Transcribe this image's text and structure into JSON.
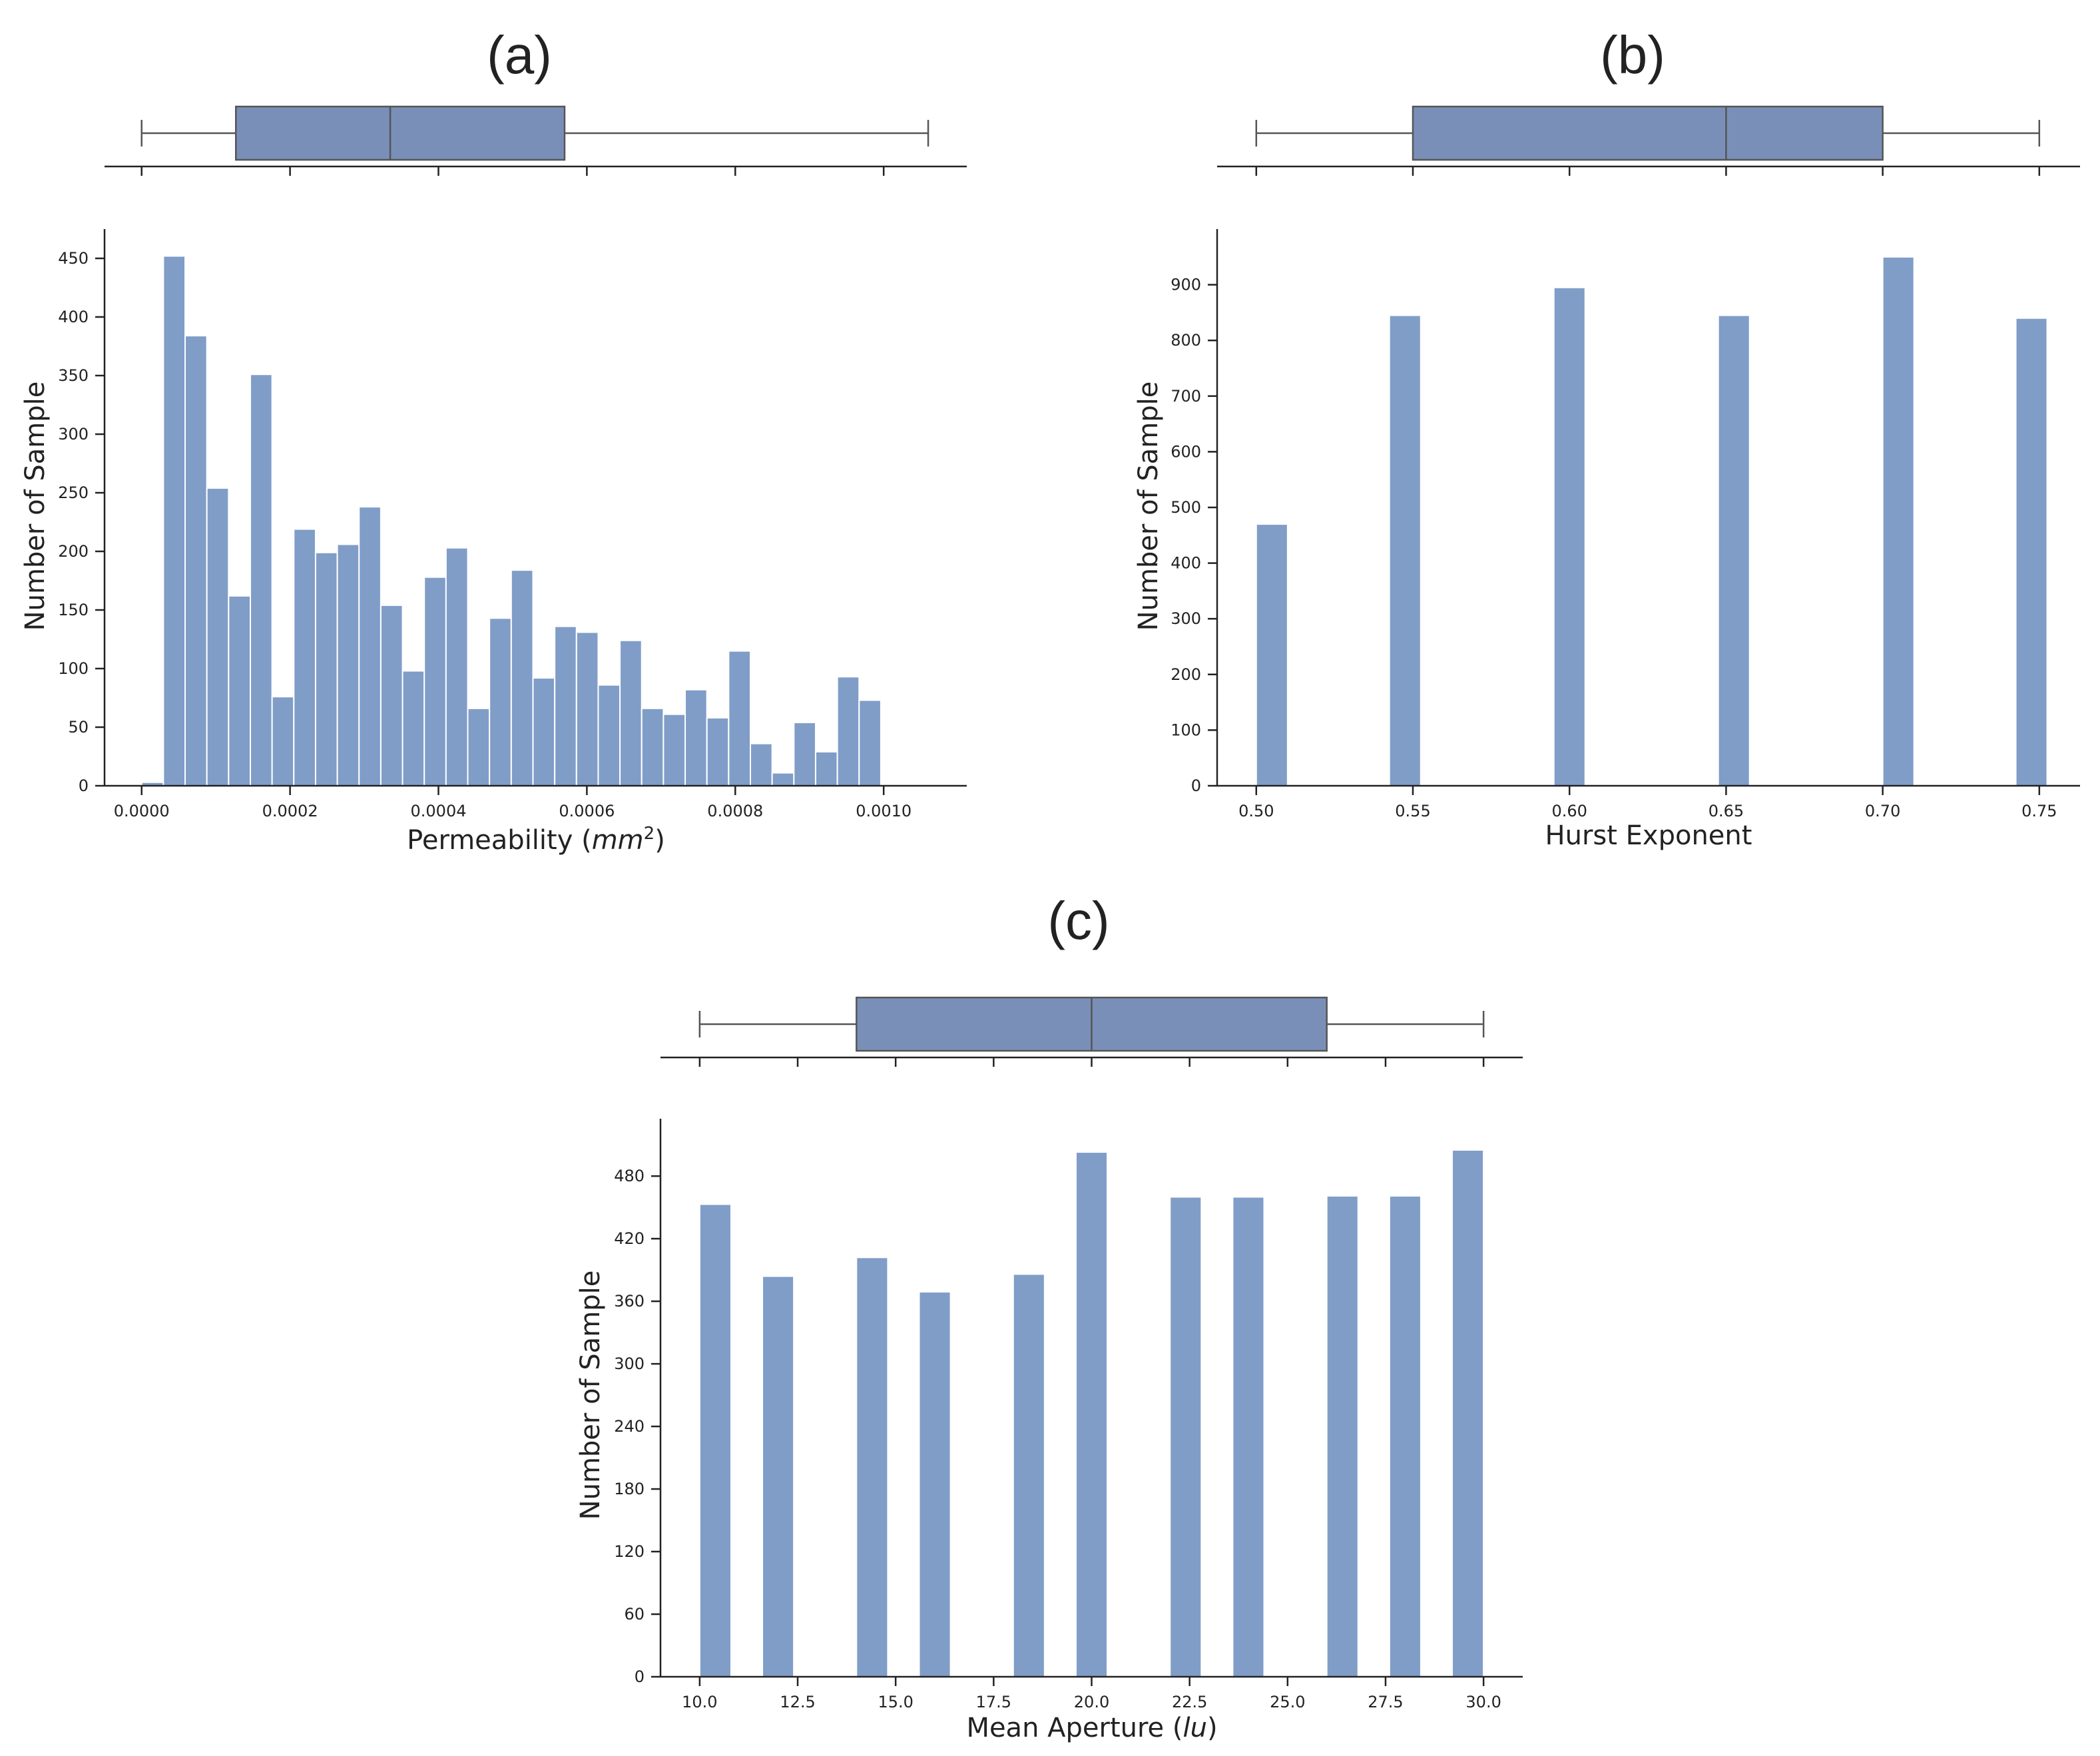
{
  "colors": {
    "bar": "#809dc8",
    "box": "#7a8fb8",
    "bar_edge": "#ffffff",
    "axis": "#222222",
    "whisker": "#555555"
  },
  "ylabel": "Number of Sample",
  "chart_data": [
    {
      "id": "a",
      "type": "bar",
      "panel_label": "(a)",
      "title": "(a)",
      "xlabel": "Permeability",
      "xlabel_unit": "mm",
      "xlabel_unit_exponent": "2",
      "ylabel": "Number of Sample",
      "xlim": [
        -5e-05,
        0.001112
      ],
      "ylim": [
        0,
        475
      ],
      "xticks": [
        0.0,
        0.0002,
        0.0004,
        0.0006,
        0.0008,
        0.001
      ],
      "xtick_labels": [
        "0.0000",
        "0.0002",
        "0.0004",
        "0.0006",
        "0.0008",
        "0.0010"
      ],
      "yticks": [
        0,
        50,
        100,
        150,
        200,
        250,
        300,
        350,
        400,
        450
      ],
      "ytick_labels": [
        "0",
        "50",
        "100",
        "150",
        "200",
        "250",
        "300",
        "350",
        "400",
        "450"
      ],
      "bin_start": 0.0,
      "bin_width": 2.93e-05,
      "values": [
        3,
        452,
        384,
        254,
        162,
        351,
        76,
        219,
        199,
        206,
        238,
        154,
        98,
        178,
        203,
        66,
        143,
        184,
        92,
        136,
        131,
        86,
        124,
        66,
        61,
        82,
        58,
        115,
        36,
        11,
        54,
        29,
        93,
        73
      ],
      "boxplot": {
        "min": 0.0,
        "q1": 0.000127,
        "median": 0.000335,
        "q3": 0.00057,
        "max": 0.00106
      },
      "grid": false
    },
    {
      "id": "b",
      "type": "bar",
      "panel_label": "(b)",
      "title": "(b)",
      "xlabel": "Hurst Exponent",
      "ylabel": "Number of Sample",
      "xlim": [
        0.4875,
        0.763
      ],
      "ylim": [
        0,
        1000
      ],
      "xticks": [
        0.5,
        0.55,
        0.6,
        0.65,
        0.7,
        0.75
      ],
      "xtick_labels": [
        "0.50",
        "0.55",
        "0.60",
        "0.65",
        "0.70",
        "0.75"
      ],
      "yticks": [
        0,
        100,
        200,
        300,
        400,
        500,
        600,
        700,
        800,
        900
      ],
      "ytick_labels": [
        "0",
        "100",
        "200",
        "300",
        "400",
        "500",
        "600",
        "700",
        "800",
        "900"
      ],
      "bar_width": 0.01,
      "bars": [
        {
          "left": 0.5,
          "value": 470
        },
        {
          "left": 0.5425,
          "value": 845
        },
        {
          "left": 0.595,
          "value": 895
        },
        {
          "left": 0.6475,
          "value": 845
        },
        {
          "left": 0.7,
          "value": 950
        },
        {
          "left": 0.7425,
          "value": 840
        }
      ],
      "boxplot": {
        "min": 0.5,
        "q1": 0.55,
        "median": 0.65,
        "q3": 0.7,
        "max": 0.75
      },
      "grid": false
    },
    {
      "id": "c",
      "type": "bar",
      "panel_label": "(c)",
      "title": "(c)",
      "xlabel": "Mean Aperture",
      "xlabel_unit": "lu",
      "ylabel": "Number of Sample",
      "xlim": [
        9.0,
        31.0
      ],
      "ylim": [
        0,
        535
      ],
      "xticks": [
        10,
        12.5,
        15,
        17.5,
        20,
        22.5,
        25,
        27.5,
        30
      ],
      "xtick_labels": [
        "10.0",
        "12.5",
        "15.0",
        "17.5",
        "20.0",
        "22.5",
        "25.0",
        "27.5",
        "30.0"
      ],
      "yticks": [
        0,
        60,
        120,
        180,
        240,
        300,
        360,
        420,
        480
      ],
      "ytick_labels": [
        "0",
        "60",
        "120",
        "180",
        "240",
        "300",
        "360",
        "420",
        "480"
      ],
      "bar_width": 0.8,
      "bars": [
        {
          "left": 10.0,
          "value": 453
        },
        {
          "left": 11.6,
          "value": 384
        },
        {
          "left": 14.0,
          "value": 402
        },
        {
          "left": 15.6,
          "value": 369
        },
        {
          "left": 18.0,
          "value": 386
        },
        {
          "left": 19.6,
          "value": 503
        },
        {
          "left": 22.0,
          "value": 460
        },
        {
          "left": 23.6,
          "value": 460
        },
        {
          "left": 26.0,
          "value": 461
        },
        {
          "left": 27.6,
          "value": 461
        },
        {
          "left": 29.2,
          "value": 505
        }
      ],
      "boxplot": {
        "min": 10,
        "q1": 14,
        "median": 20,
        "q3": 26,
        "max": 30
      },
      "grid": false
    }
  ]
}
